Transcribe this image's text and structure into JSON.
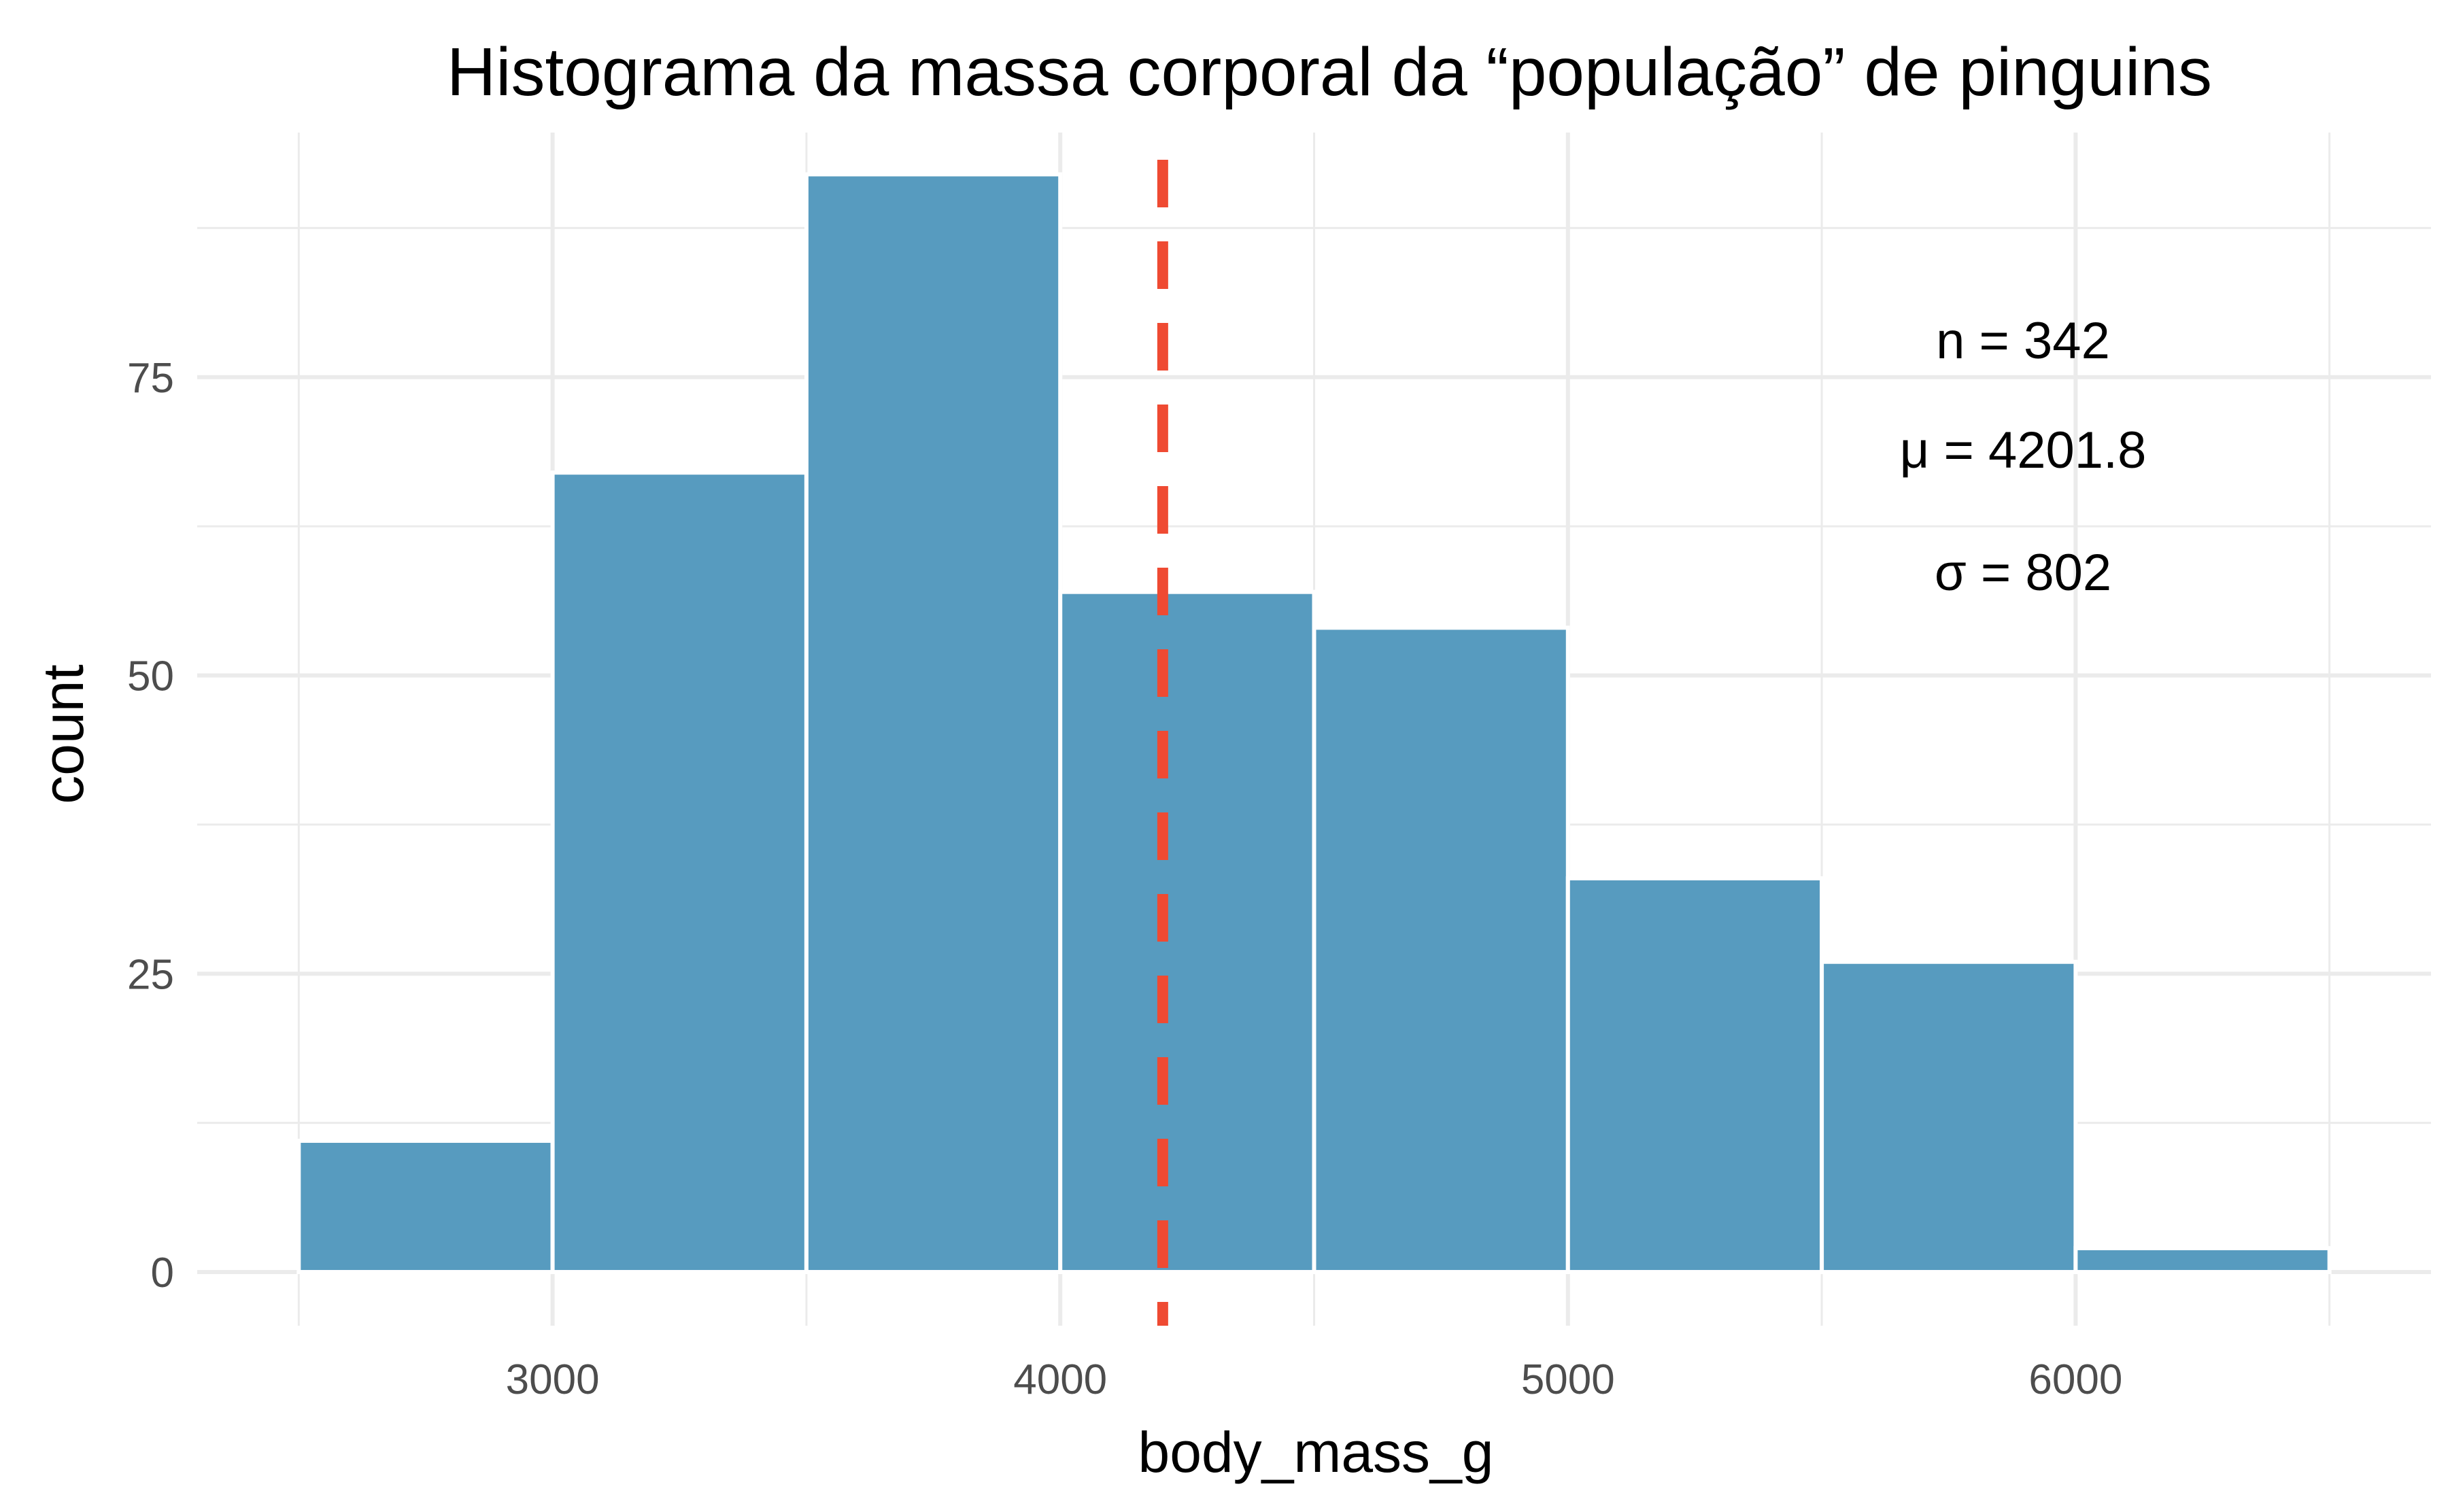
{
  "chart_data": {
    "type": "bar",
    "title": "Histograma da massa corporal da “população” de pinguins",
    "xlabel": "body_mass_g",
    "ylabel": "count",
    "bins": [
      {
        "start": 2500,
        "end": 3000,
        "count": 11
      },
      {
        "start": 3000,
        "end": 3500,
        "count": 67
      },
      {
        "start": 3500,
        "end": 4000,
        "count": 92
      },
      {
        "start": 4000,
        "end": 4500,
        "count": 57
      },
      {
        "start": 4500,
        "end": 5000,
        "count": 54
      },
      {
        "start": 5000,
        "end": 5500,
        "count": 33
      },
      {
        "start": 5500,
        "end": 6000,
        "count": 26
      },
      {
        "start": 6000,
        "end": 6500,
        "count": 2
      }
    ],
    "xlim": [
      2300,
      6700
    ],
    "ylim": [
      -4.5,
      95.5
    ],
    "x_ticks": [
      3000,
      4000,
      5000,
      6000
    ],
    "x_tick_labels": [
      "3000",
      "4000",
      "5000",
      "6000"
    ],
    "x_minor_ticks": [
      2500,
      3500,
      4500,
      5500,
      6500
    ],
    "y_ticks": [
      0,
      25,
      50,
      75
    ],
    "y_tick_labels": [
      "0",
      "25",
      "50",
      "75"
    ],
    "y_minor_ticks": [
      12.5,
      37.5,
      62.5,
      87.5
    ],
    "mean_line": {
      "x": 4201.8,
      "style": "dashed"
    },
    "annotations": [
      "n = 342",
      "μ = 4201.8",
      "σ = 802"
    ],
    "grid": true,
    "colors": {
      "bar_fill": "#579bbf",
      "bar_edge": "#ffffff",
      "mean_line": "#ef4a32",
      "grid": "#ebebeb"
    }
  }
}
